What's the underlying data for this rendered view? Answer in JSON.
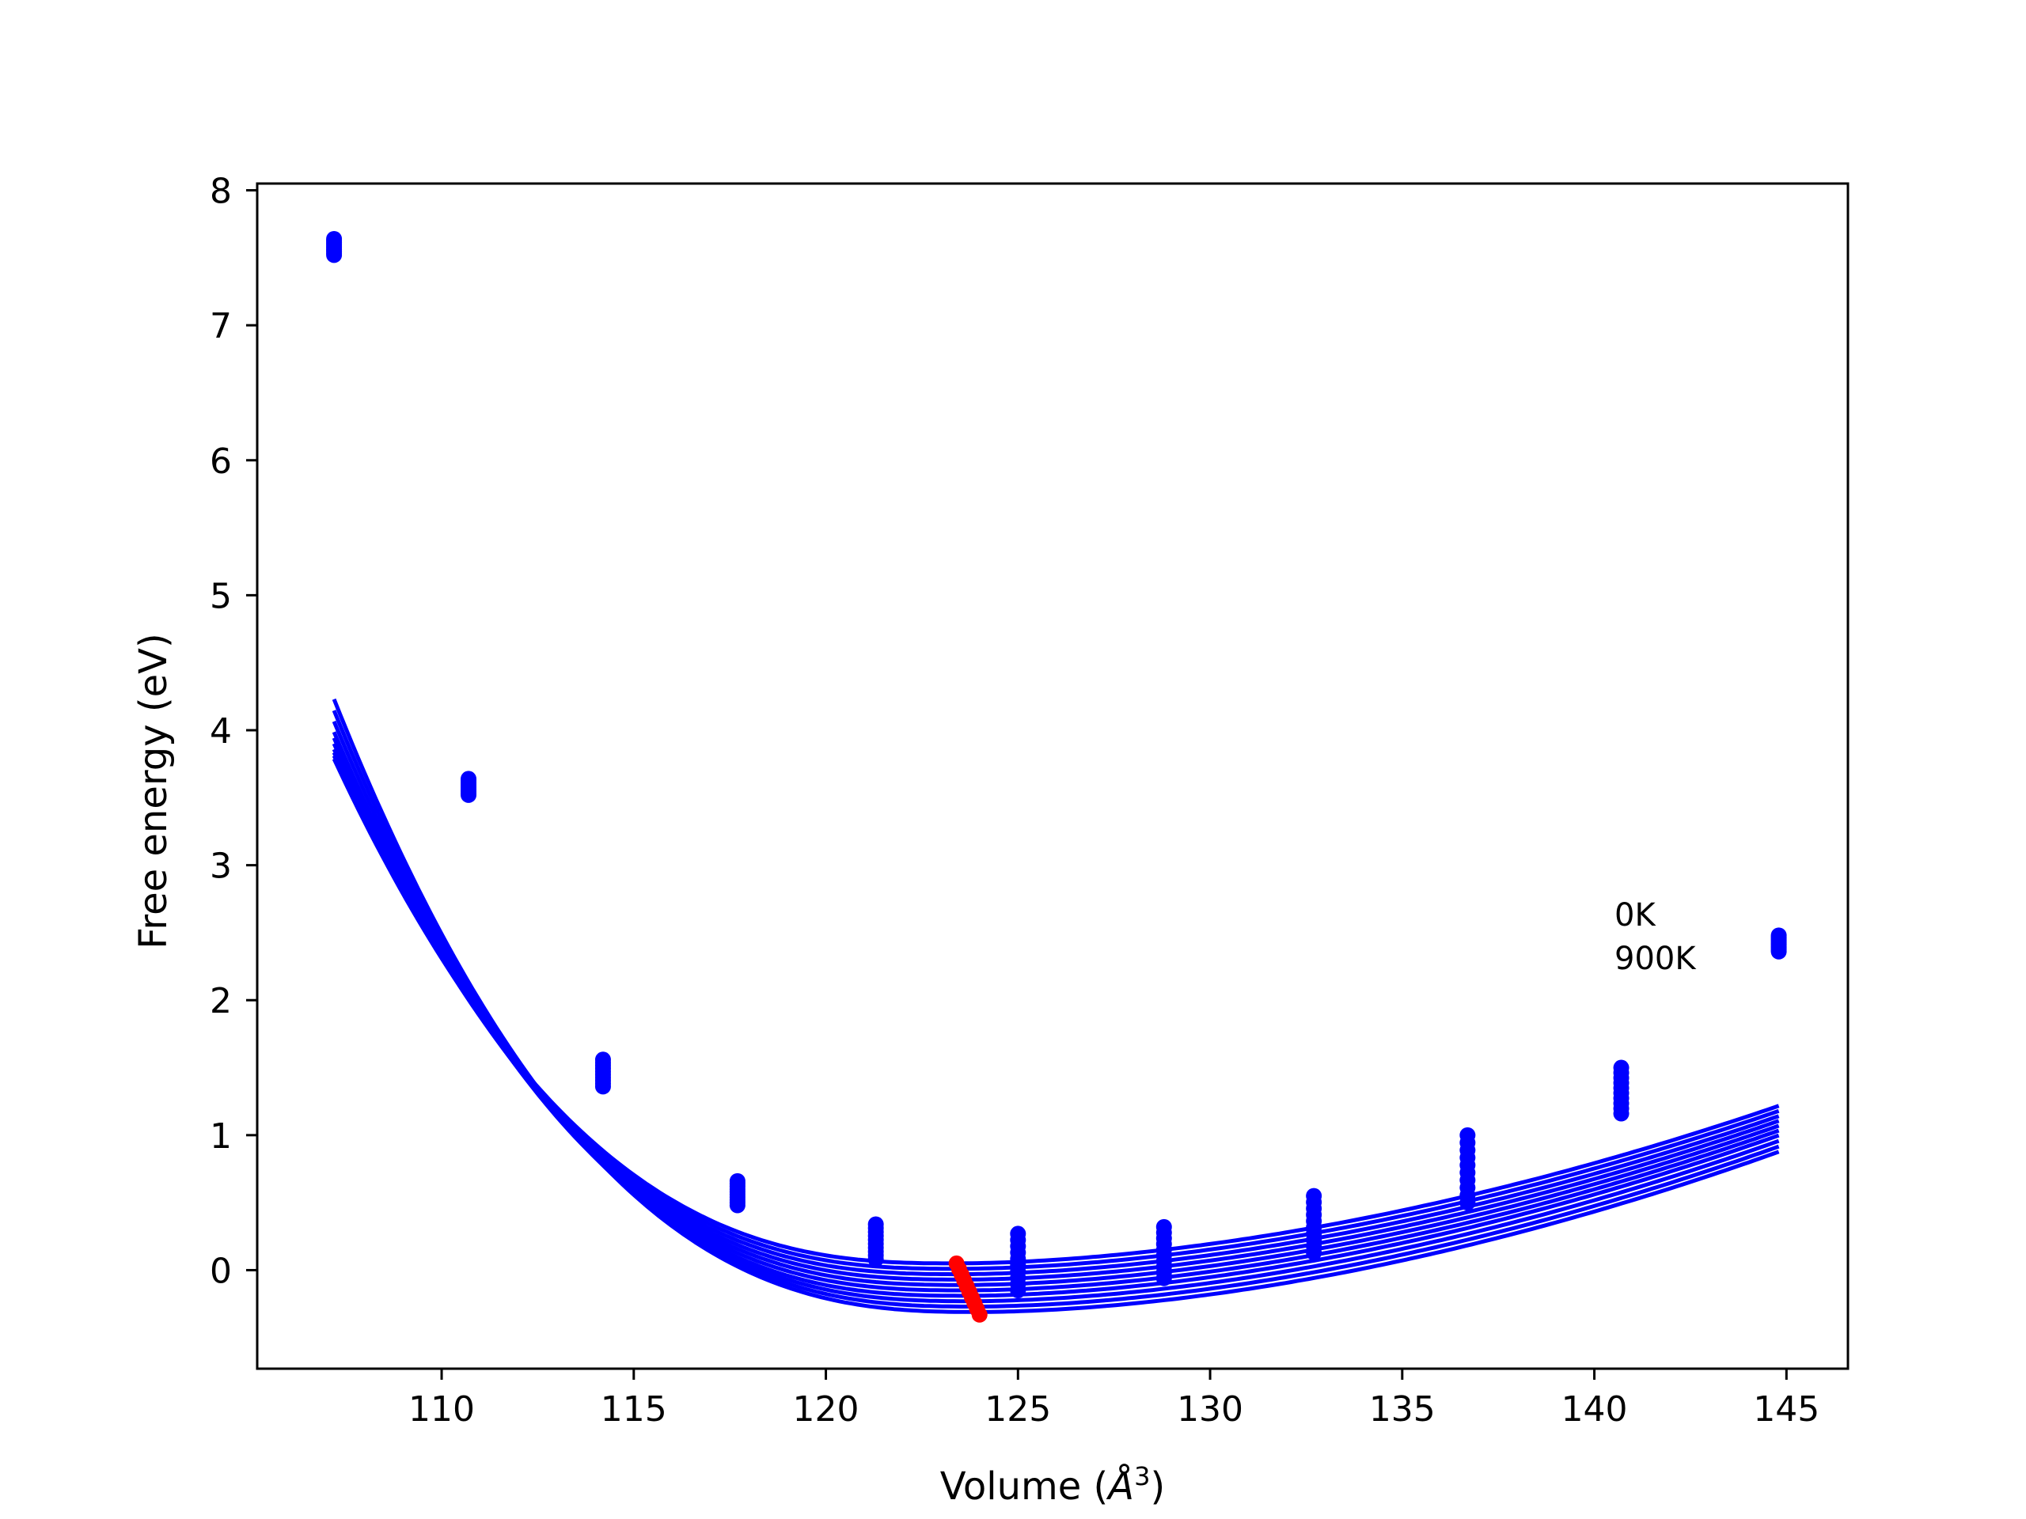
{
  "chart_data": {
    "type": "line",
    "title": "",
    "xlabel": "Volume (Å³)",
    "xlabel_main": "Volume (",
    "xlabel_unit": "Å",
    "xlabel_exp": "3",
    "xlabel_close": ")",
    "ylabel": "Free energy (eV)",
    "xlim": [
      105.2,
      146.6
    ],
    "ylim": [
      -0.73,
      8.05
    ],
    "x_ticks": [
      110,
      115,
      120,
      125,
      130,
      135,
      140,
      145
    ],
    "y_ticks": [
      0,
      1,
      2,
      3,
      4,
      5,
      6,
      7,
      8
    ],
    "grid": false,
    "annotations": [
      "0K",
      "900K"
    ],
    "series_color": "#0000ff",
    "minimum_color": "#ff0000",
    "temperature_curves": {
      "count": 10,
      "note_range": [
        "0K",
        "900K"
      ],
      "V0": [
        123.4,
        123.45,
        123.5,
        123.55,
        123.6,
        123.65,
        123.7,
        123.8,
        123.9,
        124.0
      ],
      "E0": [
        0.05,
        0.01,
        -0.03,
        -0.07,
        -0.11,
        -0.15,
        -0.19,
        -0.23,
        -0.27,
        -0.31
      ],
      "k_left": [
        0.00233,
        0.00235,
        0.00237,
        0.00239,
        0.00242,
        0.00245,
        0.00248,
        0.00251,
        0.00254,
        0.00257
      ],
      "k_right": [
        0.005,
        0.00503,
        0.00506,
        0.0051,
        0.00514,
        0.00518,
        0.00522,
        0.00526,
        0.0053,
        0.00535
      ],
      "x_range": [
        107.2,
        144.8
      ]
    },
    "data_points": {
      "x": [
        107.2,
        110.7,
        114.2,
        117.7,
        121.3,
        125.0,
        128.8,
        132.7,
        136.7,
        140.7,
        144.8
      ],
      "y_ranges": [
        [
          7.52,
          7.64
        ],
        [
          3.52,
          3.64
        ],
        [
          1.36,
          1.56
        ],
        [
          0.48,
          0.66
        ],
        [
          0.08,
          0.34
        ],
        [
          -0.15,
          0.27
        ],
        [
          -0.06,
          0.32
        ],
        [
          0.13,
          0.55
        ],
        [
          0.5,
          1.0
        ],
        [
          1.16,
          1.5
        ],
        [
          2.36,
          2.48
        ]
      ]
    },
    "minimum_locus": {
      "x_range": [
        123.4,
        124.0
      ],
      "y_range": [
        -0.33,
        0.05
      ]
    }
  }
}
